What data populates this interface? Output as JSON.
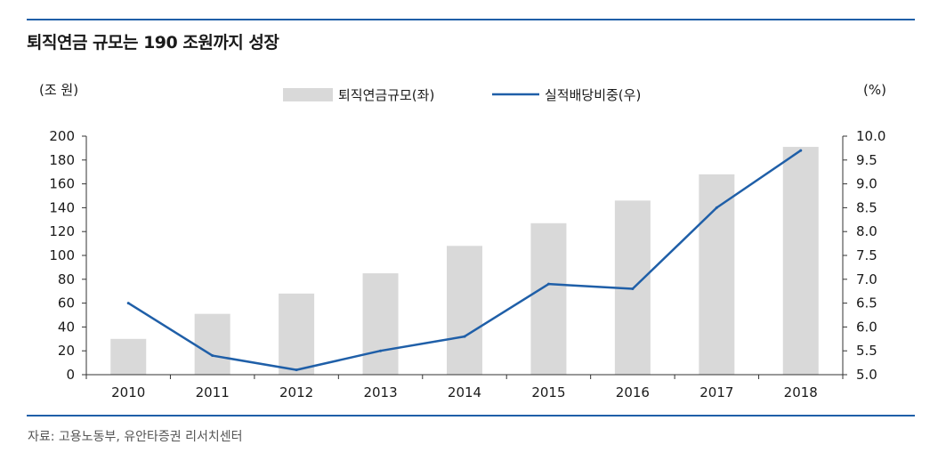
{
  "title": "퇴직연금 규모는 190 조원까지 성장",
  "source": "자료: 고용노동부, 유안타증권 리서치센터",
  "colors": {
    "bar": "#d9d9d9",
    "line": "#1f5fa8",
    "rule": "#1f5fa8"
  },
  "chart_data": {
    "type": "bar+line",
    "categories": [
      "2010",
      "2011",
      "2012",
      "2013",
      "2014",
      "2015",
      "2016",
      "2017",
      "2018"
    ],
    "series": [
      {
        "name": "퇴직연금규모(좌)",
        "type": "bar",
        "axis": "left",
        "values": [
          30,
          51,
          68,
          85,
          108,
          127,
          146,
          168,
          191
        ]
      },
      {
        "name": "실적배당비중(우)",
        "type": "line",
        "axis": "right",
        "values": [
          6.5,
          5.4,
          5.1,
          5.5,
          5.8,
          6.9,
          6.8,
          8.5,
          9.7
        ]
      }
    ],
    "y_left": {
      "unit": "(조 원)",
      "min": 0,
      "max": 200,
      "step": 20,
      "ticks": [
        "0",
        "20",
        "40",
        "60",
        "80",
        "100",
        "120",
        "140",
        "160",
        "180",
        "200"
      ]
    },
    "y_right": {
      "unit": "(%)",
      "min": 5.0,
      "max": 10.0,
      "step": 0.5,
      "ticks": [
        "5.0",
        "5.5",
        "6.0",
        "6.5",
        "7.0",
        "7.5",
        "8.0",
        "8.5",
        "9.0",
        "9.5",
        "10.0"
      ]
    },
    "legend": "top-center",
    "grid": false
  }
}
